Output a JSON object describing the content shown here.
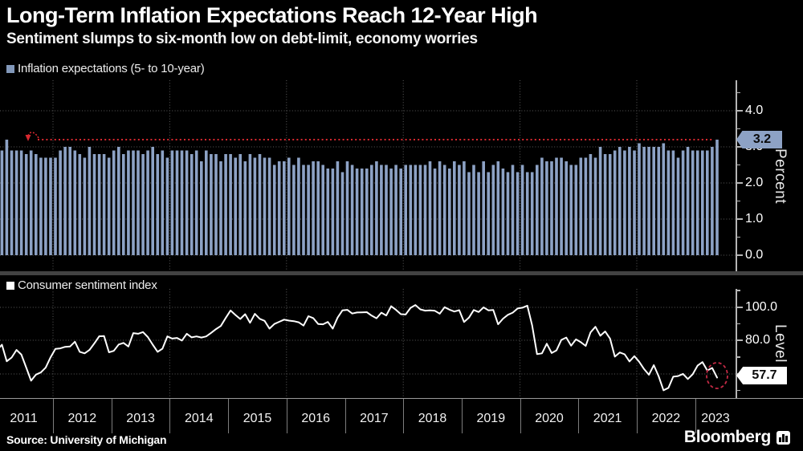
{
  "header": {
    "title": "Long-Term Inflation Expectations Reach 12-Year High",
    "subtitle": "Sentiment slumps to six-month low on debt-limit, economy worries"
  },
  "inflation_chart": {
    "legend": "Inflation expectations (5- to 10-year)",
    "axis_title": "Percent",
    "tick_labels": [
      "4.0",
      "3.0",
      "2.0",
      "1.0",
      "0.0"
    ],
    "value_badge": "3.2"
  },
  "sentiment_chart": {
    "legend": "Consumer sentiment index",
    "axis_title": "Level",
    "tick_labels": [
      "100.0",
      "80.0"
    ],
    "value_badge": "57.7"
  },
  "x_axis": {
    "year_labels": [
      "2011",
      "2012",
      "2013",
      "2014",
      "2015",
      "2016",
      "2017",
      "2018",
      "2019",
      "2020",
      "2021",
      "2022",
      "2023"
    ]
  },
  "footer": {
    "source": "Source: University of Michigan",
    "brand": "Bloomberg"
  },
  "colors": {
    "background": "#000000",
    "bar": "#8da2c5",
    "legend_bar_swatch": "#8298ba",
    "line": "#ffffff",
    "accent_red": "#d7282f",
    "gridline": "#5b5b5b",
    "axis": "#b5b5b5",
    "badge_inflation_bg": "#8da2c5",
    "badge_sentiment_bg": "#ffffff",
    "divider": "#424242"
  },
  "chart_data": [
    {
      "type": "bar",
      "title": "Inflation expectations (5- to 10-year)",
      "ylabel": "Percent",
      "ylim": [
        0,
        4.85
      ],
      "yticks": [
        0.0,
        1.0,
        2.0,
        3.0,
        4.0
      ],
      "x_start": "2011-01",
      "x_end": "2023-05",
      "frequency": "monthly",
      "grid": "dotted",
      "legend_position": "top-left",
      "annotations": {
        "reference_line_value": 3.2,
        "reference_line_style": "red dotted with curled arrow at left",
        "last_value_label": "3.2"
      },
      "values": [
        2.9,
        2.9,
        3.2,
        2.9,
        2.9,
        2.9,
        2.8,
        2.9,
        2.8,
        2.7,
        2.7,
        2.7,
        2.7,
        2.9,
        3.0,
        3.0,
        2.9,
        2.8,
        2.7,
        3.0,
        2.8,
        2.8,
        2.8,
        2.7,
        2.9,
        3.0,
        2.8,
        2.9,
        2.9,
        2.9,
        2.8,
        2.9,
        3.0,
        2.8,
        2.9,
        2.7,
        2.9,
        2.9,
        2.9,
        2.9,
        2.8,
        2.9,
        2.6,
        2.9,
        2.8,
        2.8,
        2.6,
        2.8,
        2.8,
        2.7,
        2.8,
        2.6,
        2.8,
        2.7,
        2.8,
        2.7,
        2.7,
        2.5,
        2.6,
        2.6,
        2.7,
        2.5,
        2.7,
        2.5,
        2.5,
        2.6,
        2.6,
        2.5,
        2.4,
        2.4,
        2.6,
        2.3,
        2.6,
        2.5,
        2.4,
        2.4,
        2.4,
        2.5,
        2.6,
        2.5,
        2.5,
        2.4,
        2.5,
        2.4,
        2.5,
        2.5,
        2.5,
        2.5,
        2.5,
        2.6,
        2.4,
        2.6,
        2.5,
        2.4,
        2.6,
        2.5,
        2.6,
        2.3,
        2.5,
        2.3,
        2.6,
        2.3,
        2.5,
        2.6,
        2.4,
        2.3,
        2.5,
        2.3,
        2.5,
        2.3,
        2.3,
        2.5,
        2.7,
        2.6,
        2.6,
        2.7,
        2.7,
        2.6,
        2.5,
        2.5,
        2.7,
        2.7,
        2.8,
        2.7,
        3.0,
        2.8,
        2.8,
        2.9,
        3.0,
        2.9,
        3.0,
        2.9,
        3.1,
        3.0,
        3.0,
        3.0,
        3.0,
        3.1,
        2.9,
        2.9,
        2.7,
        2.9,
        3.0,
        2.9,
        2.9,
        2.9,
        2.9,
        3.0,
        3.2
      ]
    },
    {
      "type": "line",
      "title": "Consumer sentiment index",
      "ylabel": "Level",
      "ylim": [
        40,
        105.8
      ],
      "yticks": [
        60.0,
        80.0,
        100.0
      ],
      "x_start": "2011-01",
      "x_end": "2023-05",
      "frequency": "monthly",
      "grid": "dotted",
      "legend_position": "top-left",
      "annotations": {
        "circled_last_point": true,
        "last_value_label": "57.7"
      },
      "values": [
        74.2,
        77.5,
        67.5,
        69.8,
        74.3,
        71.5,
        63.7,
        55.8,
        59.5,
        60.8,
        63.7,
        69.9,
        75.0,
        75.3,
        76.2,
        76.4,
        79.3,
        73.2,
        72.3,
        74.3,
        78.3,
        82.6,
        82.7,
        72.9,
        73.8,
        77.6,
        78.6,
        76.4,
        84.5,
        84.1,
        85.1,
        82.1,
        77.5,
        73.2,
        75.1,
        82.5,
        81.2,
        81.6,
        80.0,
        84.1,
        81.9,
        82.5,
        81.8,
        82.5,
        84.6,
        86.9,
        88.8,
        93.6,
        98.1,
        95.4,
        93.0,
        95.9,
        90.7,
        96.1,
        93.1,
        91.9,
        87.2,
        90.0,
        91.3,
        92.6,
        92.0,
        91.7,
        91.0,
        89.0,
        94.7,
        93.5,
        90.0,
        89.8,
        91.2,
        87.2,
        93.8,
        98.2,
        98.5,
        96.3,
        96.9,
        97.0,
        97.1,
        95.0,
        93.4,
        96.8,
        95.1,
        100.7,
        98.5,
        95.9,
        95.7,
        99.7,
        101.4,
        98.8,
        98.0,
        98.2,
        97.9,
        96.2,
        100.1,
        98.6,
        97.5,
        98.3,
        91.2,
        93.8,
        98.4,
        97.2,
        100.0,
        98.2,
        98.4,
        89.8,
        93.2,
        95.5,
        96.8,
        99.3,
        99.8,
        101.0,
        89.1,
        71.8,
        72.3,
        78.1,
        72.5,
        74.1,
        80.4,
        81.8,
        76.9,
        80.7,
        79.0,
        76.8,
        84.9,
        88.3,
        82.9,
        85.5,
        81.2,
        70.3,
        72.8,
        71.7,
        67.4,
        70.6,
        67.2,
        62.8,
        59.4,
        65.2,
        58.4,
        50.0,
        51.5,
        58.2,
        58.6,
        59.9,
        56.8,
        59.7,
        64.9,
        67.0,
        62.0,
        63.5,
        57.7
      ]
    }
  ]
}
